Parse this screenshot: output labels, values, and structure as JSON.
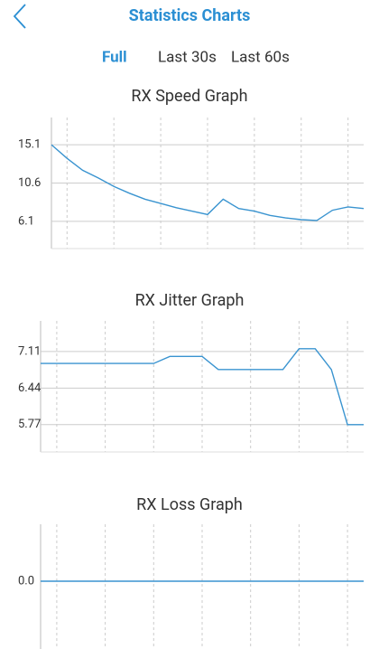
{
  "header": {
    "title": "Statistics Charts"
  },
  "tabs": [
    "Full",
    "Last 30s",
    "Last 60s"
  ],
  "active_tab": 0,
  "chart_data": [
    {
      "type": "line",
      "title": "RX Speed Graph",
      "color": "#3a94d0",
      "values": [
        15.1,
        13.5,
        12.1,
        11.2,
        10.2,
        9.4,
        8.7,
        8.2,
        7.7,
        7.3,
        6.9,
        8.7,
        7.6,
        7.3,
        6.8,
        6.5,
        6.3,
        6.2,
        7.4,
        7.8,
        7.6
      ],
      "ylim": [
        2.9,
        18.3
      ],
      "yticks": [
        15.1,
        10.6,
        6.1
      ],
      "grid": true
    },
    {
      "type": "line",
      "title": "RX Jitter Graph",
      "color": "#3a94d0",
      "values": [
        6.89,
        6.89,
        6.89,
        6.89,
        6.89,
        6.89,
        6.89,
        6.89,
        7.02,
        7.02,
        7.02,
        6.78,
        6.78,
        6.78,
        6.78,
        6.78,
        7.16,
        7.16,
        6.78,
        5.77,
        5.77
      ],
      "ylim": [
        5.27,
        7.67
      ],
      "yticks": [
        7.11,
        6.44,
        5.77
      ],
      "grid": true
    },
    {
      "type": "line",
      "title": "RX Loss Graph",
      "color": "#3a94d0",
      "values": [
        0,
        0,
        0,
        0,
        0,
        0,
        0,
        0,
        0,
        0,
        0,
        0,
        0,
        0,
        0,
        0,
        0,
        0,
        0,
        0,
        0
      ],
      "ylim": [
        -1.19,
        1
      ],
      "yticks": [
        {
          "value": 0,
          "label": "0.0"
        }
      ],
      "grid": true
    }
  ]
}
